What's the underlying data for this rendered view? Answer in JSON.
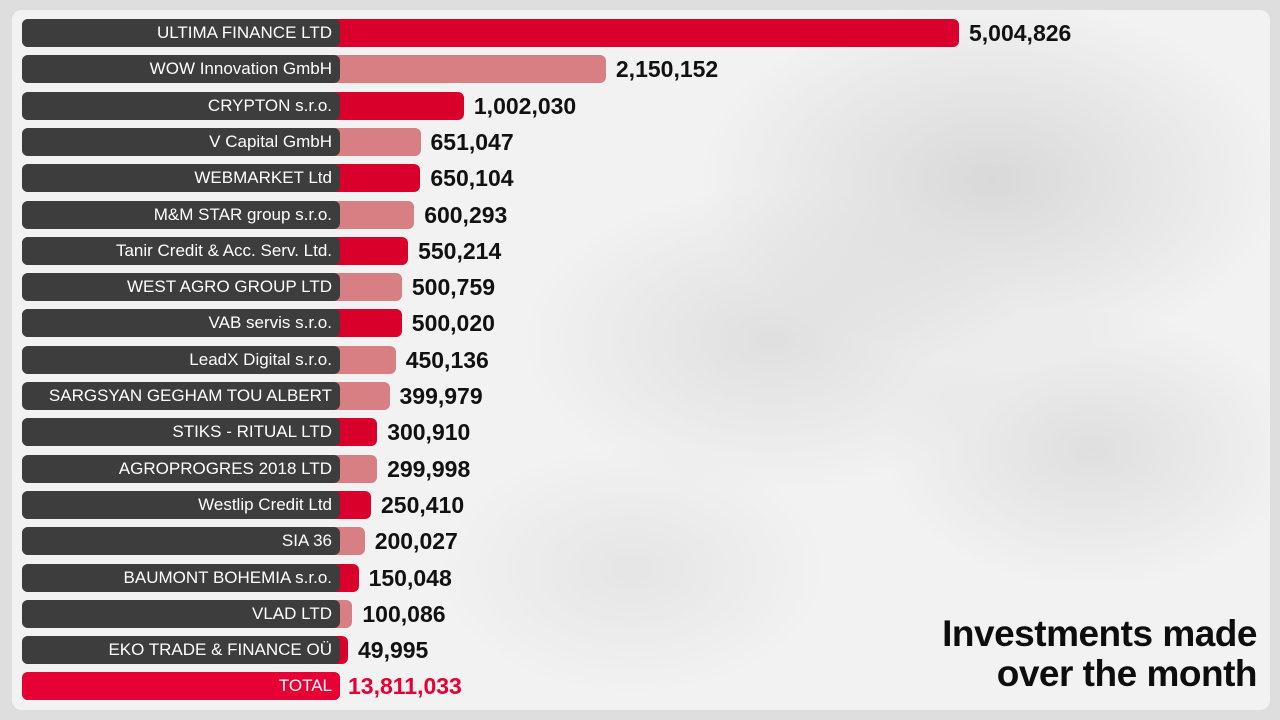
{
  "title_lines": [
    "Investments made",
    "over the month"
  ],
  "colors": {
    "primary_bar": "#d9002b",
    "secondary_bar": "#d77f82",
    "label_pill": "#3d3d3d",
    "total_bar": "#e60033",
    "total_value": "#e60033"
  },
  "chart_data": {
    "type": "bar",
    "orientation": "horizontal",
    "title": "Investments made over the month",
    "categories": [
      "ULTIMA FINANCE LTD",
      "WOW Innovation GmbH",
      "CRYPTON s.r.o.",
      "V Capital GmbH",
      "WEBMARKET Ltd",
      "M&M STAR group s.r.o.",
      "Tanir Credit & Acc. Serv. Ltd.",
      "WEST AGRO GROUP LTD",
      "VAB servis s.r.o.",
      "LeadX Digital s.r.o.",
      "SARGSYAN GEGHAM TOU ALBERT",
      "STIKS - RITUAL LTD",
      "AGROPROGRES 2018 LTD",
      "Westlip Credit Ltd",
      "SIA 36",
      "BAUMONT BOHEMIA s.r.o.",
      "VLAD LTD",
      "EKO TRADE & FINANCE OÜ"
    ],
    "values": [
      5004826,
      2150152,
      1002030,
      651047,
      650104,
      600293,
      550214,
      500759,
      500020,
      450136,
      399979,
      300910,
      299998,
      250410,
      200027,
      150048,
      100086,
      49995
    ],
    "value_labels": [
      "5,004,826",
      "2,150,152",
      "1,002,030",
      "651,047",
      "650,104",
      "600,293",
      "550,214",
      "500,759",
      "500,020",
      "450,136",
      "399,979",
      "300,910",
      "299,998",
      "250,410",
      "200,027",
      "150,048",
      "100,086",
      "49,995"
    ],
    "bar_color_pattern": [
      "primary",
      "secondary",
      "primary",
      "secondary",
      "primary",
      "secondary",
      "primary",
      "secondary",
      "primary",
      "secondary",
      "secondary",
      "primary",
      "secondary",
      "primary",
      "secondary",
      "primary",
      "secondary",
      "primary"
    ],
    "total": {
      "label": "TOTAL",
      "value": 13811033,
      "value_label": "13,811,033"
    },
    "xlim": [
      0,
      5004826
    ],
    "grid": false,
    "legend": "none"
  }
}
